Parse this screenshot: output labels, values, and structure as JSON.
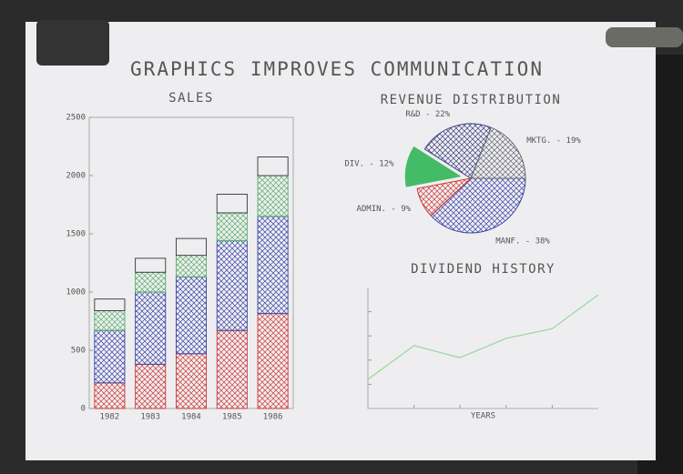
{
  "title": "GRAPHICS IMPROVES COMMUNICATION",
  "chart_data": [
    {
      "type": "stacked_bar",
      "title": "SALES",
      "categories": [
        "1982",
        "1983",
        "1984",
        "1985",
        "1986"
      ],
      "series": [
        {
          "color": "#d03838",
          "hatched": true,
          "values": [
            220,
            380,
            470,
            670,
            815
          ]
        },
        {
          "color": "#3a44a8",
          "hatched": true,
          "values": [
            450,
            620,
            660,
            770,
            835
          ]
        },
        {
          "color": "#5aae6a",
          "hatched": true,
          "values": [
            170,
            170,
            185,
            240,
            350
          ]
        },
        {
          "color": "#333333",
          "hatched": false,
          "values": [
            100,
            120,
            145,
            160,
            160
          ]
        }
      ],
      "ylim": [
        0,
        2500
      ],
      "yticks": [
        0,
        500,
        1000,
        1500,
        2000,
        2500
      ]
    },
    {
      "type": "pie",
      "title": "REVENUE DISTRIBUTION",
      "categories": [
        "MANF. - 38%",
        "ADMIN. - 9%",
        "DIV. - 12%",
        "R&D - 22%",
        "MKTG. - 19%"
      ],
      "values": [
        38,
        9,
        12,
        22,
        19
      ],
      "colors": [
        "#3a44a8",
        "#d03838",
        "#44bb66",
        "#3a3f80",
        "#666677"
      ],
      "fill_style": [
        "hatch",
        "hatch",
        "solid",
        "hatch",
        "hatch"
      ],
      "exploded": [
        false,
        false,
        true,
        false,
        false
      ]
    },
    {
      "type": "line",
      "title": "DIVIDEND HISTORY",
      "xlabel": "YEARS",
      "x": [
        0,
        1,
        2,
        3,
        4,
        5
      ],
      "values": [
        1.2,
        2.6,
        2.1,
        2.9,
        3.3,
        4.7
      ],
      "color": "#9fd8a0",
      "xlim": [
        0,
        5
      ],
      "ylim": [
        0,
        5
      ],
      "xticks": [
        1,
        2,
        3,
        4
      ],
      "yticks": [
        1,
        2,
        3,
        4
      ]
    }
  ]
}
